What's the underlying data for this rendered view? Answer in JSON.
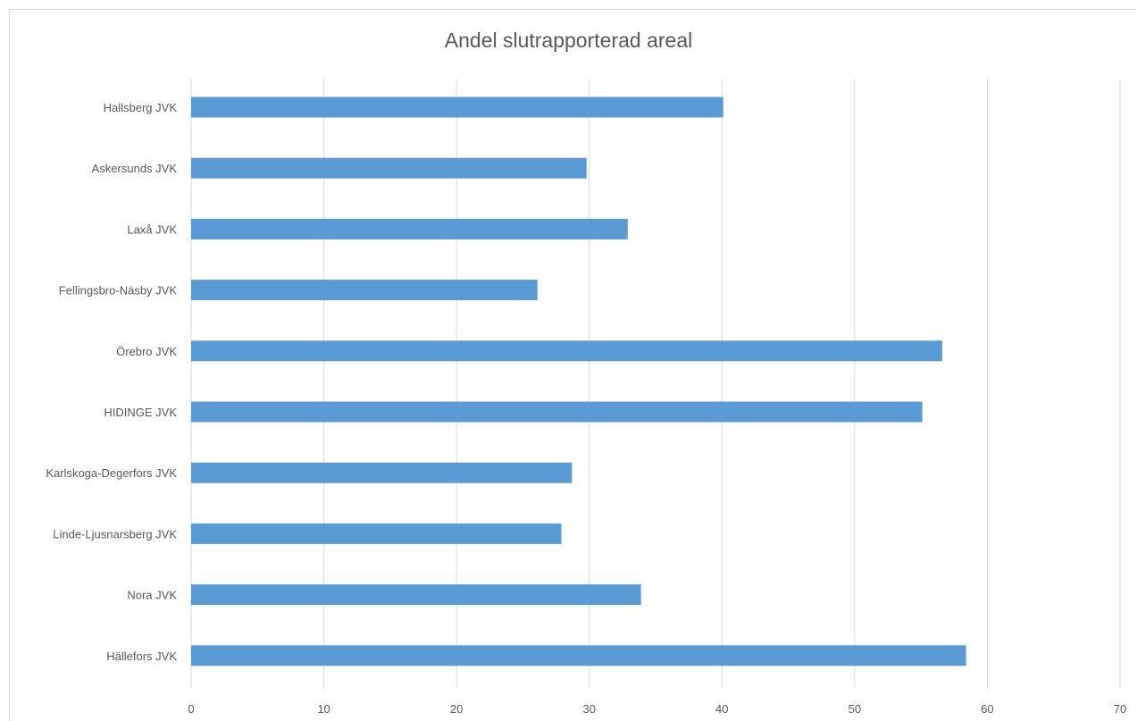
{
  "chart_data": {
    "type": "bar",
    "orientation": "horizontal",
    "title": "Andel slutrapporterad areal",
    "xlabel": "",
    "ylabel": "",
    "categories": [
      "Hallsberg JVK",
      "Askersunds JVK",
      "Laxå JVK",
      "Fellingsbro-Näsby JVK",
      "Örebro JVK",
      "HIDINGE JVK",
      "Karlskoga-Degerfors JVK",
      "Linde-Ljusnarsberg JVK",
      "Nora JVK",
      "Hällefors JVK"
    ],
    "values": [
      40.1,
      29.8,
      32.9,
      26.1,
      56.6,
      55.1,
      28.7,
      27.9,
      33.9,
      58.4
    ],
    "xlim": [
      0,
      70
    ],
    "xticks": [
      "0",
      "10",
      "20",
      "30",
      "40",
      "50",
      "60",
      "70"
    ],
    "grid": true,
    "legend": "none",
    "bar_color": "#5b9bd5",
    "grid_color": "#d9d9d9",
    "text_color": "#595959"
  }
}
